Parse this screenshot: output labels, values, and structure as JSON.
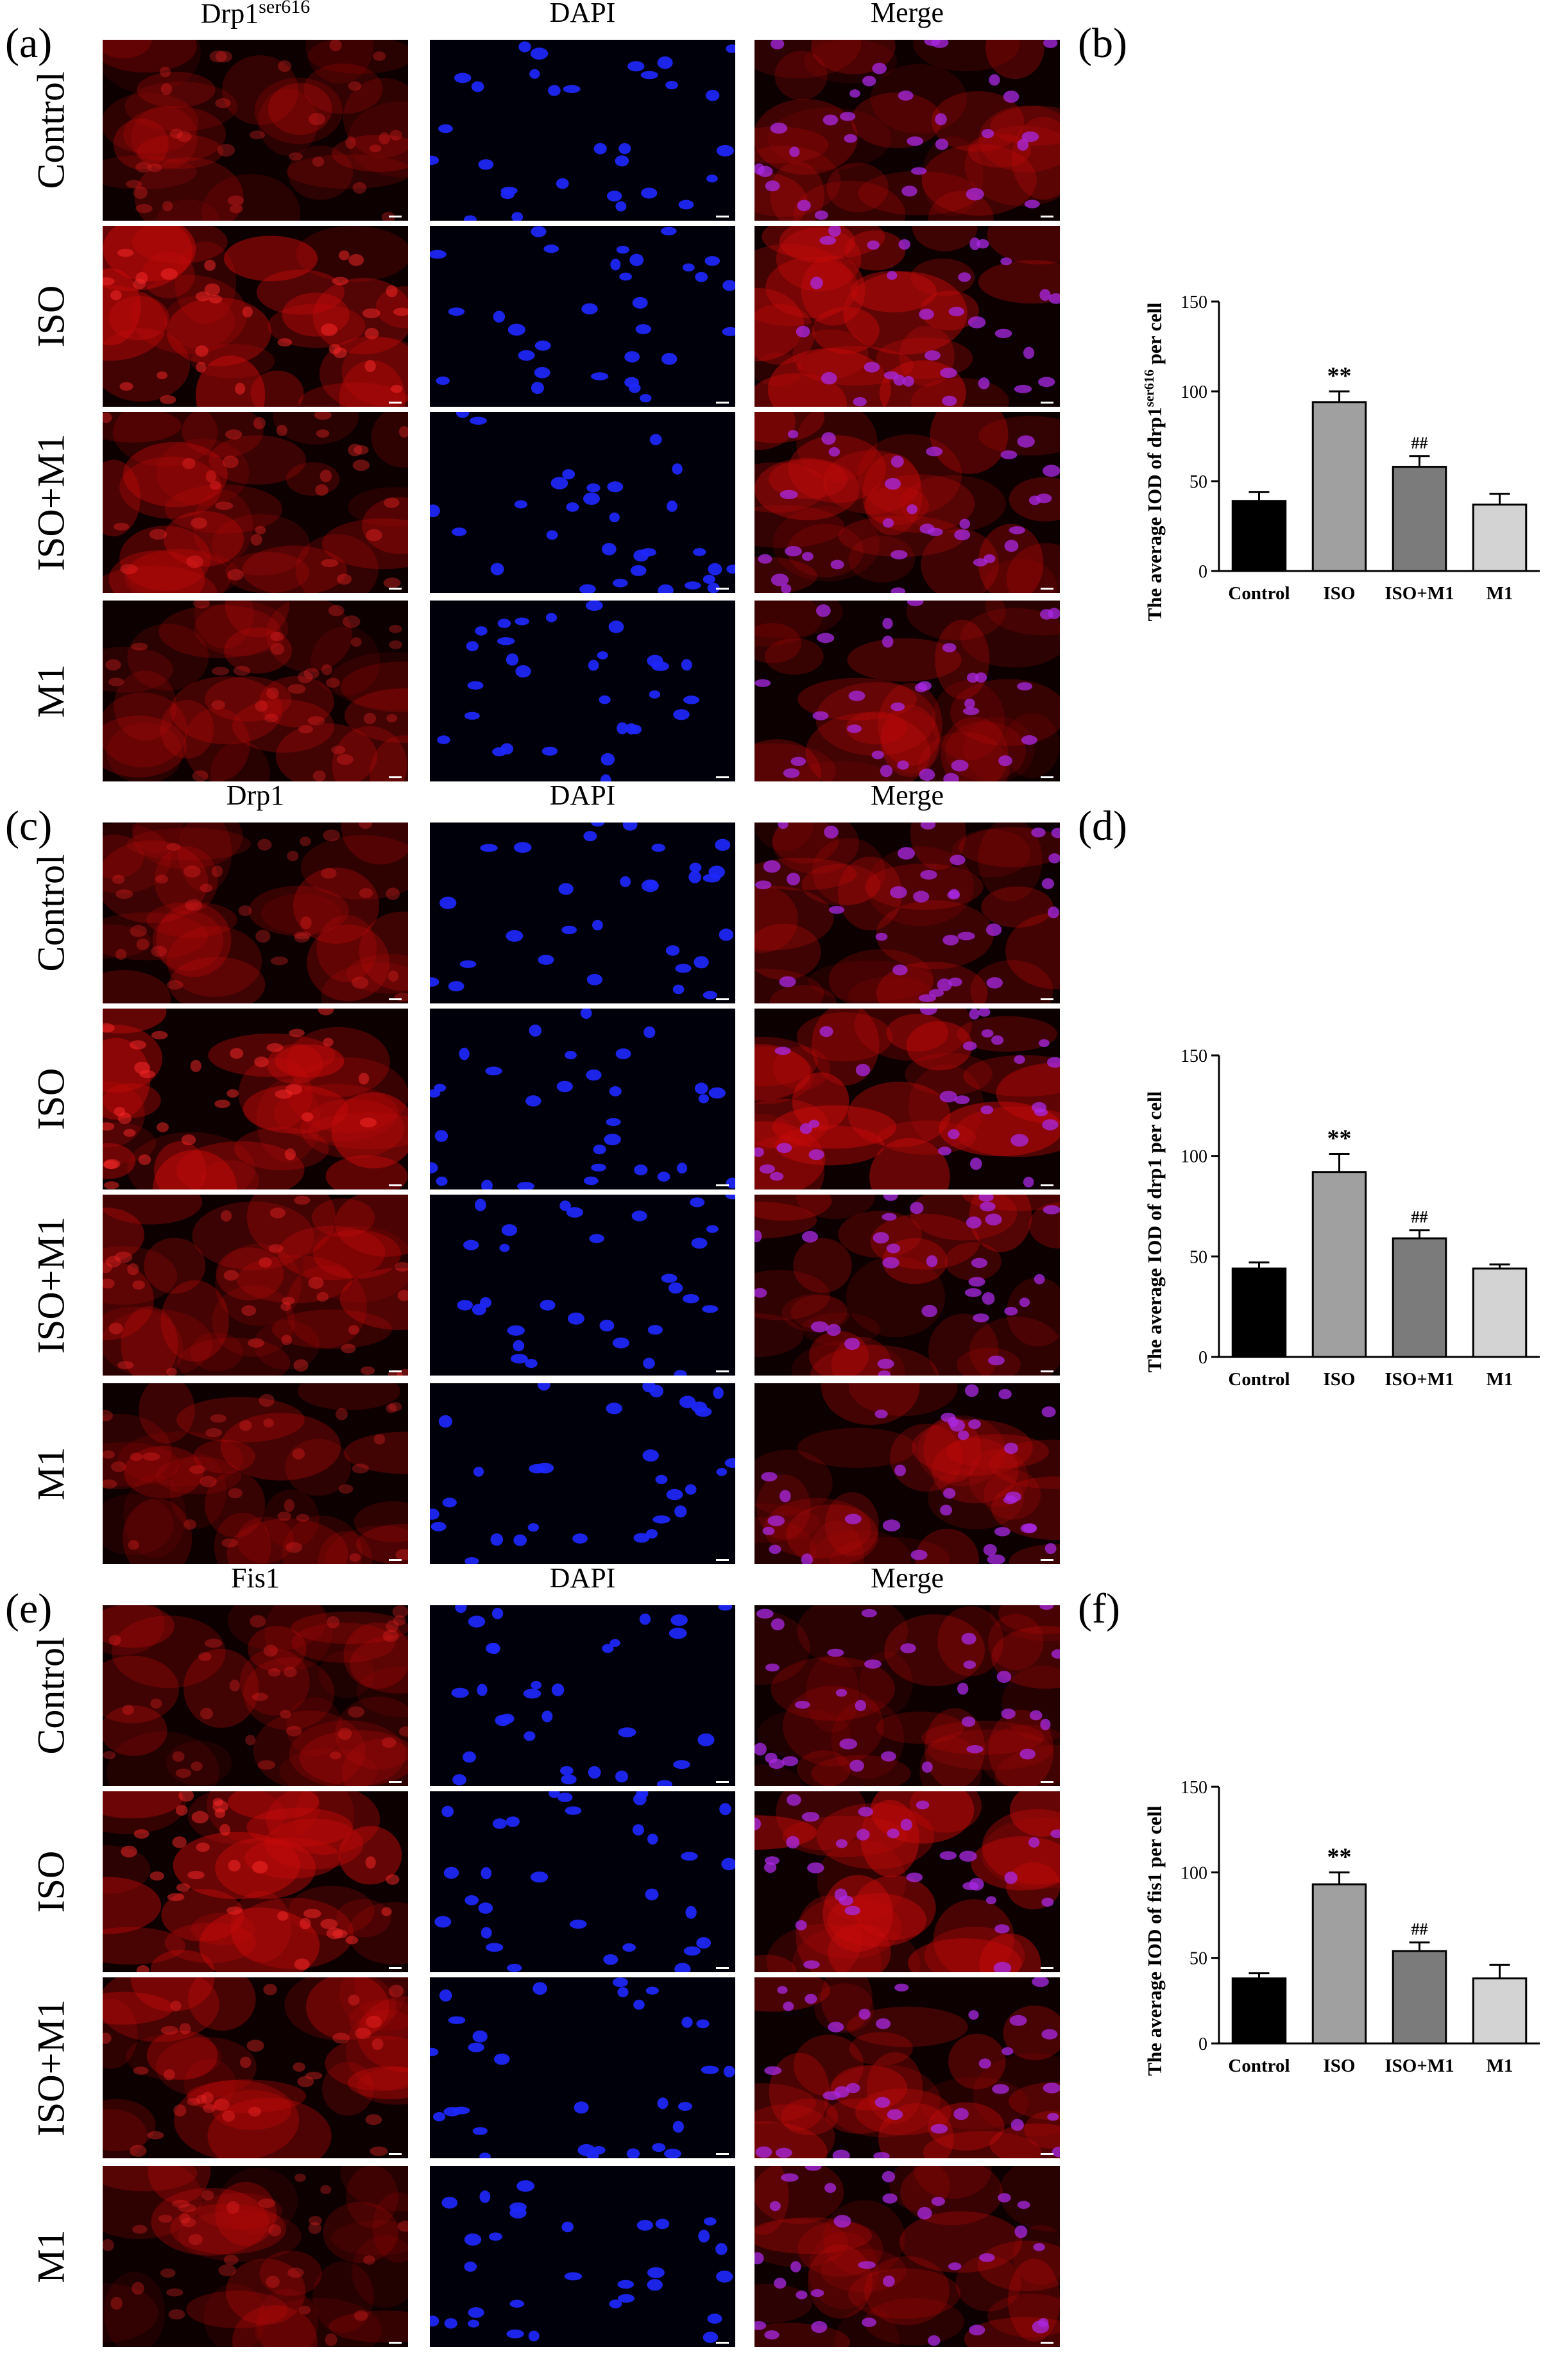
{
  "sections": [
    {
      "letter_images": "(a)",
      "letter_chart": "(b)",
      "columns": [
        {
          "label": "Drp1",
          "sup": "ser616",
          "color": "red"
        },
        {
          "label": "DAPI",
          "sup": "",
          "color": "blue"
        },
        {
          "label": "Merge",
          "sup": "",
          "color": "merge"
        }
      ],
      "rows": [
        "Control",
        "ISO",
        "ISO+M1",
        "M1"
      ]
    },
    {
      "letter_images": "(c)",
      "letter_chart": "(d)",
      "columns": [
        {
          "label": "Drp1",
          "sup": "",
          "color": "red"
        },
        {
          "label": "DAPI",
          "sup": "",
          "color": "blue"
        },
        {
          "label": "Merge",
          "sup": "",
          "color": "merge"
        }
      ],
      "rows": [
        "Control",
        "ISO",
        "ISO+M1",
        "M1"
      ]
    },
    {
      "letter_images": "(e)",
      "letter_chart": "(f)",
      "columns": [
        {
          "label": "Fis1",
          "sup": "",
          "color": "red"
        },
        {
          "label": "DAPI",
          "sup": "",
          "color": "blue"
        },
        {
          "label": "Merge",
          "sup": "",
          "color": "merge"
        }
      ],
      "rows": [
        "Control",
        "ISO",
        "ISO+M1",
        "M1"
      ]
    }
  ],
  "chart_data": [
    {
      "type": "bar",
      "categories": [
        "Control",
        "ISO",
        "ISO+M1",
        "M1"
      ],
      "values": [
        39,
        94,
        58,
        37
      ],
      "errors": [
        5,
        6,
        6,
        6
      ],
      "annotations": [
        "",
        "**",
        "##",
        ""
      ],
      "ylabel": "The average IOD of drp1",
      "ylabel_sup": "ser616",
      "ylabel_suffix": " per cell",
      "ylim": [
        0,
        150
      ],
      "yticks": [
        0,
        50,
        100,
        150
      ],
      "bar_colors": [
        "#000000",
        "#a0a0a0",
        "#7b7b7b",
        "#d3d3d3"
      ]
    },
    {
      "type": "bar",
      "categories": [
        "Control",
        "ISO",
        "ISO+M1",
        "M1"
      ],
      "values": [
        44,
        92,
        59,
        44
      ],
      "errors": [
        3,
        9,
        4,
        2
      ],
      "annotations": [
        "",
        "**",
        "##",
        ""
      ],
      "ylabel": "The average IOD of drp1 per cell",
      "ylabel_sup": "",
      "ylabel_suffix": "",
      "ylim": [
        0,
        150
      ],
      "yticks": [
        0,
        50,
        100,
        150
      ],
      "bar_colors": [
        "#000000",
        "#a0a0a0",
        "#7b7b7b",
        "#d3d3d3"
      ]
    },
    {
      "type": "bar",
      "categories": [
        "Control",
        "ISO",
        "ISO+M1",
        "M1"
      ],
      "values": [
        38,
        93,
        54,
        38
      ],
      "errors": [
        3,
        7,
        5,
        8
      ],
      "annotations": [
        "",
        "**",
        "##",
        ""
      ],
      "ylabel": "The average IOD of fis1 per cell",
      "ylabel_sup": "",
      "ylabel_suffix": "",
      "ylim": [
        0,
        150
      ],
      "yticks": [
        0,
        50,
        100,
        150
      ],
      "bar_colors": [
        "#000000",
        "#a0a0a0",
        "#7b7b7b",
        "#d3d3d3"
      ]
    }
  ]
}
